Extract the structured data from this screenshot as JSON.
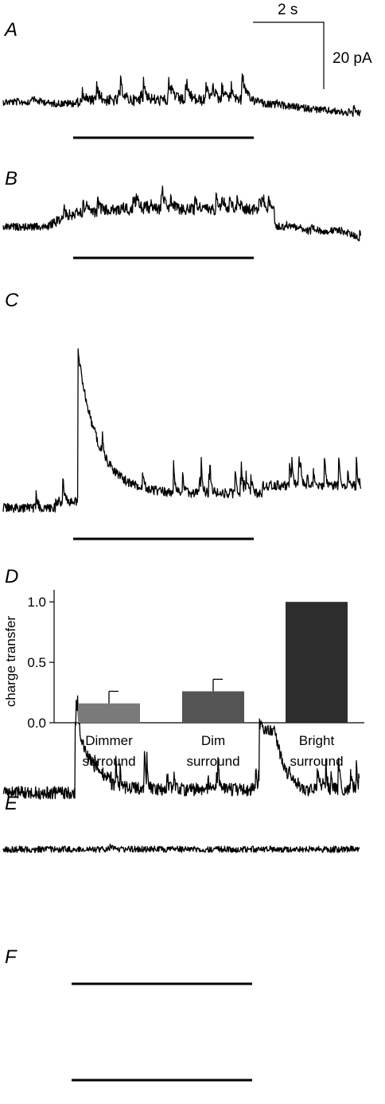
{
  "scalebar": {
    "time_label": "2 s",
    "current_label": "20 pA"
  },
  "panels": {
    "A": {
      "label": "A"
    },
    "B": {
      "label": "B"
    },
    "C": {
      "label": "C"
    },
    "D": {
      "label": "D"
    },
    "E": {
      "label": "E"
    },
    "F": {
      "label": "F"
    }
  },
  "chart_data": {
    "type": "bar",
    "ylabel": "charge transfer",
    "ylim": [
      0,
      1.1
    ],
    "yticks": [
      "0.0",
      "0.5",
      "1.0"
    ],
    "categories": [
      {
        "line1": "Dimmer",
        "line2": "surround"
      },
      {
        "line1": "Dim",
        "line2": "surround"
      },
      {
        "line1": "Bright",
        "line2": "surround"
      }
    ],
    "values": [
      0.16,
      0.26,
      1.0
    ],
    "errors": [
      0.1,
      0.1,
      0
    ],
    "colors": [
      "#7a7a7a",
      "#545454",
      "#2d2d2d"
    ]
  }
}
